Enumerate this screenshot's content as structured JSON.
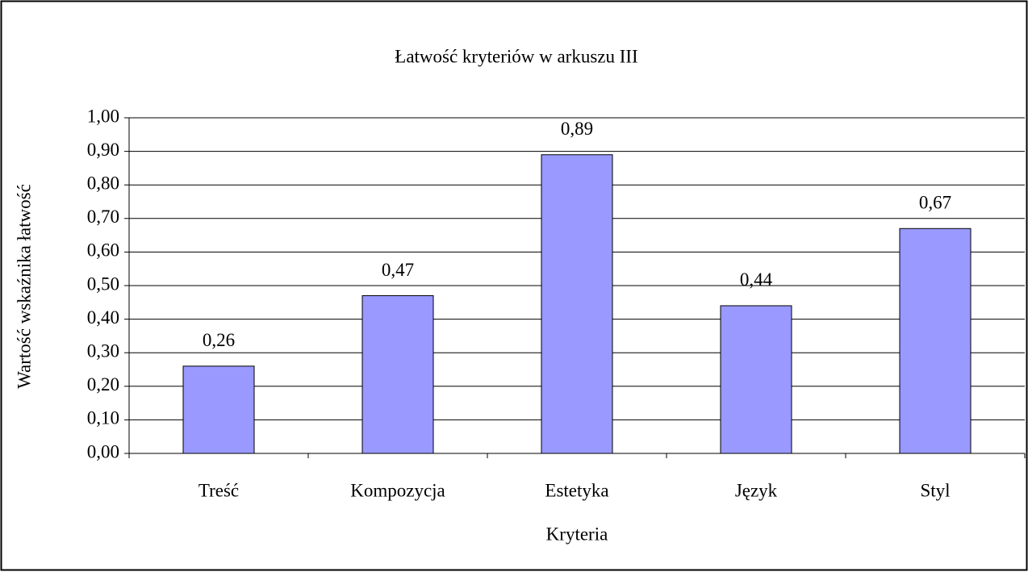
{
  "chart_data": {
    "type": "bar",
    "title": "Łatwość kryteriów w arkuszu III",
    "x_label": "Kryteria",
    "y_label": "Wartość wskaźnika łatwość",
    "categories": [
      "Treść",
      "Kompozycja",
      "Estetyka",
      "Język",
      "Styl"
    ],
    "values": [
      0.26,
      0.47,
      0.89,
      0.44,
      0.67
    ],
    "value_labels": [
      "0,26",
      "0,47",
      "0,89",
      "0,44",
      "0,67"
    ],
    "color": "#9999ff",
    "ylim": [
      0,
      1
    ],
    "yticks": [
      {
        "value": 0,
        "label": "0,00"
      },
      {
        "value": 0.1,
        "label": "0,10"
      },
      {
        "value": 0.2,
        "label": "0,20"
      },
      {
        "value": 0.3,
        "label": "0,30"
      },
      {
        "value": 0.4,
        "label": "0,40"
      },
      {
        "value": 0.5,
        "label": "0,50"
      },
      {
        "value": 0.6,
        "label": "0,60"
      },
      {
        "value": 0.7,
        "label": "0,70"
      },
      {
        "value": 0.8,
        "label": "0,80"
      },
      {
        "value": 0.9,
        "label": "0,90"
      },
      {
        "value": 1,
        "label": "1,00"
      }
    ],
    "grid": true
  }
}
